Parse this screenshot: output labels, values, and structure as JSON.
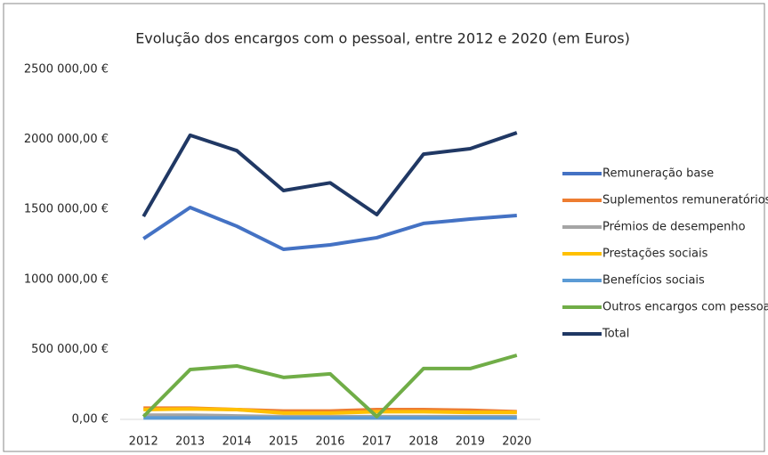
{
  "chart_data": {
    "type": "line",
    "title": "Evolução dos encargos com o pessoal, entre 2012 e 2020 (em Euros)",
    "categories": [
      "2012",
      "2013",
      "2014",
      "2015",
      "2016",
      "2017",
      "2018",
      "2019",
      "2020"
    ],
    "series": [
      {
        "name": "Remuneração base",
        "color": "#4472c4",
        "values": [
          1291000,
          1514000,
          1380000,
          1215000,
          1247000,
          1298000,
          1400000,
          1431000,
          1457000
        ]
      },
      {
        "name": "Suplementos remuneratórios",
        "color": "#ed7d31",
        "values": [
          80000,
          80000,
          70000,
          60000,
          60000,
          70000,
          70000,
          65000,
          55000
        ]
      },
      {
        "name": "Prémios de desempenho",
        "color": "#a5a5a5",
        "values": [
          30000,
          30000,
          25000,
          20000,
          20000,
          20000,
          20000,
          20000,
          20000
        ]
      },
      {
        "name": "Prestações sociais",
        "color": "#ffc000",
        "values": [
          70000,
          75000,
          70000,
          45000,
          45000,
          55000,
          55000,
          50000,
          50000
        ]
      },
      {
        "name": "Benefícios sociais",
        "color": "#5b9bd5",
        "values": [
          10000,
          10000,
          10000,
          10000,
          10000,
          10000,
          10000,
          10000,
          10000
        ]
      },
      {
        "name": "Outros encargos com pessoal",
        "color": "#70ad47",
        "values": [
          20000,
          356000,
          382000,
          300000,
          325000,
          20000,
          363000,
          363000,
          458000
        ]
      },
      {
        "name": "Total",
        "color": "#203864",
        "values": [
          1450000,
          2030000,
          1920000,
          1635000,
          1690000,
          1463000,
          1895000,
          1934000,
          2048000
        ]
      }
    ],
    "ylim": [
      0,
      2500000
    ],
    "yticks": [
      {
        "value": 0,
        "label": "0,00 €"
      },
      {
        "value": 500000,
        "label": "500 000,00 €"
      },
      {
        "value": 1000000,
        "label": "1000 000,00 €"
      },
      {
        "value": 1500000,
        "label": "1500 000,00 €"
      },
      {
        "value": 2000000,
        "label": "2000 000,00 €"
      },
      {
        "value": 2500000,
        "label": "2500 000,00 €"
      }
    ],
    "grid": false,
    "legend": "right"
  }
}
